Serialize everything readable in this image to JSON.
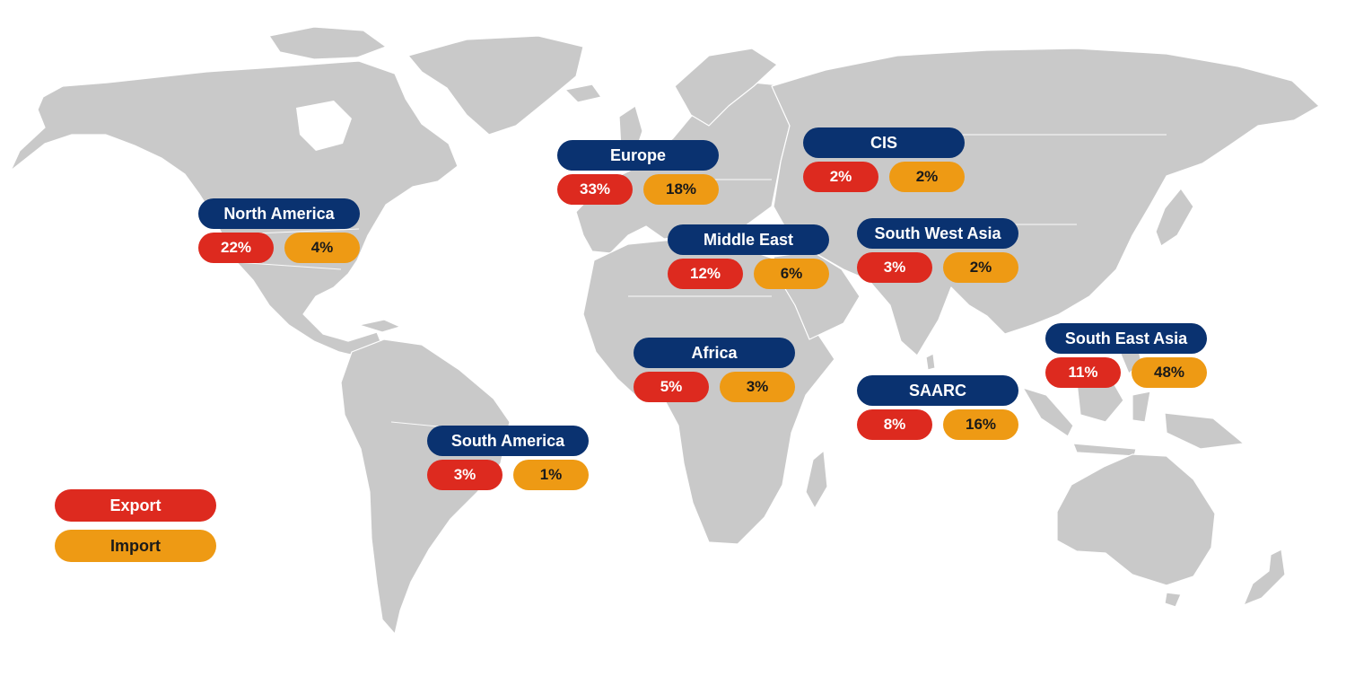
{
  "colors": {
    "land": "#c9c9c9",
    "region_label": "#0a3270",
    "export": "#dd2a1f",
    "import": "#ee9a14"
  },
  "legend": {
    "export": "Export",
    "import": "Import"
  },
  "regions": {
    "north_america": {
      "name": "North America",
      "export": "22%",
      "import": "4%"
    },
    "south_america": {
      "name": "South America",
      "export": "3%",
      "import": "1%"
    },
    "europe": {
      "name": "Europe",
      "export": "33%",
      "import": "18%"
    },
    "middle_east": {
      "name": "Middle East",
      "export": "12%",
      "import": "6%"
    },
    "africa": {
      "name": "Africa",
      "export": "5%",
      "import": "3%"
    },
    "cis": {
      "name": "CIS",
      "export": "2%",
      "import": "2%"
    },
    "south_west_asia": {
      "name": "South West Asia",
      "export": "3%",
      "import": "2%"
    },
    "saarc": {
      "name": "SAARC",
      "export": "8%",
      "import": "16%"
    },
    "south_east_asia": {
      "name": "South East Asia",
      "export": "11%",
      "import": "48%"
    }
  }
}
